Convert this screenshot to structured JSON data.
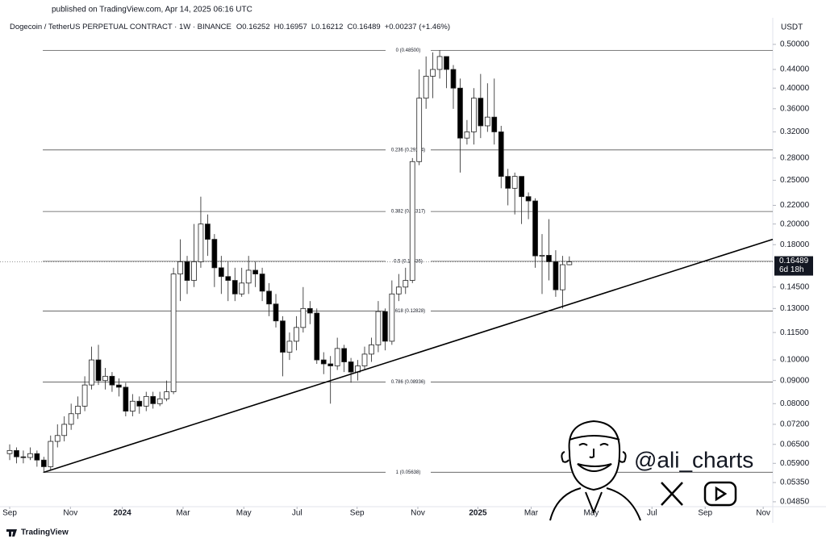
{
  "chart_data": {
    "type": "candlestick",
    "published": "published on TradingView.com, Apr 14, 2025 06:16 UTC",
    "title": "Dogecoin / TetherUS PERPETUAL CONTRACT · 1W · BINANCE",
    "ohlc_labels": [
      "O",
      "H",
      "L",
      "C"
    ],
    "change": "+0.00237 (+1.46%)",
    "currency": "USDT",
    "countdown": "6d 18h",
    "brand": "TradingView",
    "watermark": "@ali_charts",
    "up_color": "#ffffff",
    "down_color": "#000000",
    "log_scale": true,
    "ylim": [
      0.0473,
      0.521
    ],
    "yticks": [
      {
        "value": 0.5,
        "label": "0.50000"
      },
      {
        "value": 0.44,
        "label": "0.44000"
      },
      {
        "value": 0.4,
        "label": "0.40000"
      },
      {
        "value": 0.36,
        "label": "0.36000"
      },
      {
        "value": 0.32,
        "label": "0.32000"
      },
      {
        "value": 0.28,
        "label": "0.28000"
      },
      {
        "value": 0.25,
        "label": "0.25000"
      },
      {
        "value": 0.22,
        "label": "0.22000"
      },
      {
        "value": 0.2,
        "label": "0.20000"
      },
      {
        "value": 0.18,
        "label": "0.18000"
      },
      {
        "value": 0.145,
        "label": "0.14500"
      },
      {
        "value": 0.13,
        "label": "0.13000"
      },
      {
        "value": 0.115,
        "label": "0.11500"
      },
      {
        "value": 0.1,
        "label": "0.10000"
      },
      {
        "value": 0.09,
        "label": "0.09000"
      },
      {
        "value": 0.08,
        "label": "0.08000"
      },
      {
        "value": 0.072,
        "label": "0.07200"
      },
      {
        "value": 0.065,
        "label": "0.06500"
      },
      {
        "value": 0.059,
        "label": "0.05900"
      },
      {
        "value": 0.0535,
        "label": "0.05350"
      },
      {
        "value": 0.0485,
        "label": "0.04850"
      }
    ],
    "xlim": [
      -1.42,
      111.8
    ],
    "xticks": [
      {
        "value": 0,
        "label": "Sep"
      },
      {
        "value": 8.9,
        "label": "Nov"
      },
      {
        "value": 16.5,
        "label": "2024"
      },
      {
        "value": 25.4,
        "label": "Mar"
      },
      {
        "value": 34.3,
        "label": "May"
      },
      {
        "value": 42.1,
        "label": "Jul"
      },
      {
        "value": 50.9,
        "label": "Sep"
      },
      {
        "value": 59.8,
        "label": "Nov"
      },
      {
        "value": 68.6,
        "label": "2025"
      },
      {
        "value": 76.4,
        "label": "Mar"
      },
      {
        "value": 85.2,
        "label": "May"
      },
      {
        "value": 94.1,
        "label": "Jul"
      },
      {
        "value": 101.9,
        "label": "Sep"
      },
      {
        "value": 110.4,
        "label": "Nov"
      }
    ],
    "fib_levels": [
      {
        "value": 0.485,
        "label": "0 (0.48500)"
      },
      {
        "value": 0.29184,
        "label": "0.236 (0.29184)"
      },
      {
        "value": 0.21317,
        "label": "0.382 (0.21317)"
      },
      {
        "value": 0.16536,
        "label": "0.5 (0.16536)"
      },
      {
        "value": 0.12828,
        "label": "0.618 (0.12828)"
      },
      {
        "value": 0.08936,
        "label": "0.786 (0.08936)"
      },
      {
        "value": 0.05638,
        "label": "1 (0.05638)"
      }
    ],
    "fib_start": 4.85,
    "trendline": {
      "x": [
        5,
        111.8
      ],
      "y": [
        0.05638,
        0.185
      ]
    },
    "candles": [
      [
        0.062,
        0.065,
        0.06,
        0.063
      ],
      [
        0.063,
        0.064,
        0.059,
        0.061
      ],
      [
        0.061,
        0.063,
        0.059,
        0.0608
      ],
      [
        0.0608,
        0.064,
        0.06,
        0.062
      ],
      [
        0.062,
        0.063,
        0.058,
        0.06
      ],
      [
        0.06,
        0.061,
        0.0564,
        0.058
      ],
      [
        0.058,
        0.068,
        0.057,
        0.066
      ],
      [
        0.066,
        0.072,
        0.064,
        0.068
      ],
      [
        0.068,
        0.075,
        0.066,
        0.072
      ],
      [
        0.072,
        0.08,
        0.07,
        0.076
      ],
      [
        0.076,
        0.083,
        0.074,
        0.079
      ],
      [
        0.079,
        0.092,
        0.077,
        0.088
      ],
      [
        0.088,
        0.107,
        0.086,
        0.1
      ],
      [
        0.1,
        0.108,
        0.088,
        0.09
      ],
      [
        0.09,
        0.096,
        0.086,
        0.092
      ],
      [
        0.092,
        0.094,
        0.085,
        0.088
      ],
      [
        0.088,
        0.091,
        0.083,
        0.087
      ],
      [
        0.087,
        0.089,
        0.075,
        0.077
      ],
      [
        0.077,
        0.084,
        0.075,
        0.081
      ],
      [
        0.081,
        0.083,
        0.076,
        0.079
      ],
      [
        0.079,
        0.085,
        0.077,
        0.083
      ],
      [
        0.083,
        0.085,
        0.078,
        0.08
      ],
      [
        0.08,
        0.085,
        0.079,
        0.082
      ],
      [
        0.082,
        0.09,
        0.081,
        0.085
      ],
      [
        0.085,
        0.16,
        0.084,
        0.155
      ],
      [
        0.155,
        0.185,
        0.135,
        0.165
      ],
      [
        0.165,
        0.17,
        0.14,
        0.15
      ],
      [
        0.15,
        0.2,
        0.145,
        0.165
      ],
      [
        0.165,
        0.23,
        0.16,
        0.2
      ],
      [
        0.2,
        0.21,
        0.17,
        0.185
      ],
      [
        0.185,
        0.19,
        0.145,
        0.16
      ],
      [
        0.16,
        0.17,
        0.14,
        0.153
      ],
      [
        0.153,
        0.165,
        0.135,
        0.15
      ],
      [
        0.15,
        0.16,
        0.135,
        0.14
      ],
      [
        0.14,
        0.16,
        0.138,
        0.148
      ],
      [
        0.148,
        0.17,
        0.14,
        0.158
      ],
      [
        0.158,
        0.165,
        0.145,
        0.155
      ],
      [
        0.155,
        0.16,
        0.135,
        0.142
      ],
      [
        0.142,
        0.148,
        0.125,
        0.133
      ],
      [
        0.133,
        0.14,
        0.118,
        0.122
      ],
      [
        0.122,
        0.125,
        0.092,
        0.104
      ],
      [
        0.104,
        0.115,
        0.1,
        0.11
      ],
      [
        0.11,
        0.125,
        0.105,
        0.118
      ],
      [
        0.118,
        0.145,
        0.115,
        0.13
      ],
      [
        0.13,
        0.135,
        0.12,
        0.127
      ],
      [
        0.127,
        0.13,
        0.098,
        0.1
      ],
      [
        0.1,
        0.104,
        0.093,
        0.098
      ],
      [
        0.098,
        0.102,
        0.08,
        0.097
      ],
      [
        0.097,
        0.112,
        0.095,
        0.106
      ],
      [
        0.106,
        0.108,
        0.094,
        0.099
      ],
      [
        0.099,
        0.101,
        0.089,
        0.094
      ],
      [
        0.094,
        0.1,
        0.09,
        0.097
      ],
      [
        0.097,
        0.107,
        0.095,
        0.103
      ],
      [
        0.103,
        0.112,
        0.099,
        0.108
      ],
      [
        0.108,
        0.135,
        0.104,
        0.128
      ],
      [
        0.128,
        0.13,
        0.105,
        0.11
      ],
      [
        0.11,
        0.15,
        0.108,
        0.14
      ],
      [
        0.14,
        0.155,
        0.135,
        0.145
      ],
      [
        0.145,
        0.16,
        0.14,
        0.15
      ],
      [
        0.15,
        0.28,
        0.148,
        0.275
      ],
      [
        0.275,
        0.44,
        0.27,
        0.38
      ],
      [
        0.38,
        0.47,
        0.36,
        0.425
      ],
      [
        0.425,
        0.48,
        0.38,
        0.44
      ],
      [
        0.44,
        0.485,
        0.42,
        0.47
      ],
      [
        0.47,
        0.47,
        0.4,
        0.44
      ],
      [
        0.44,
        0.45,
        0.36,
        0.4
      ],
      [
        0.4,
        0.42,
        0.26,
        0.31
      ],
      [
        0.31,
        0.34,
        0.3,
        0.32
      ],
      [
        0.32,
        0.4,
        0.3,
        0.38
      ],
      [
        0.38,
        0.43,
        0.31,
        0.33
      ],
      [
        0.33,
        0.41,
        0.32,
        0.345
      ],
      [
        0.345,
        0.42,
        0.3,
        0.32
      ],
      [
        0.32,
        0.33,
        0.24,
        0.255
      ],
      [
        0.255,
        0.265,
        0.22,
        0.24
      ],
      [
        0.24,
        0.26,
        0.21,
        0.255
      ],
      [
        0.255,
        0.255,
        0.2,
        0.23
      ],
      [
        0.23,
        0.235,
        0.205,
        0.225
      ],
      [
        0.225,
        0.228,
        0.16,
        0.17
      ],
      [
        0.17,
        0.19,
        0.14,
        0.1705
      ],
      [
        0.1705,
        0.205,
        0.15,
        0.165
      ],
      [
        0.165,
        0.175,
        0.138,
        0.143
      ],
      [
        0.143,
        0.17,
        0.13,
        0.16252
      ],
      [
        0.16252,
        0.16957,
        0.16212,
        0.16489
      ]
    ]
  }
}
